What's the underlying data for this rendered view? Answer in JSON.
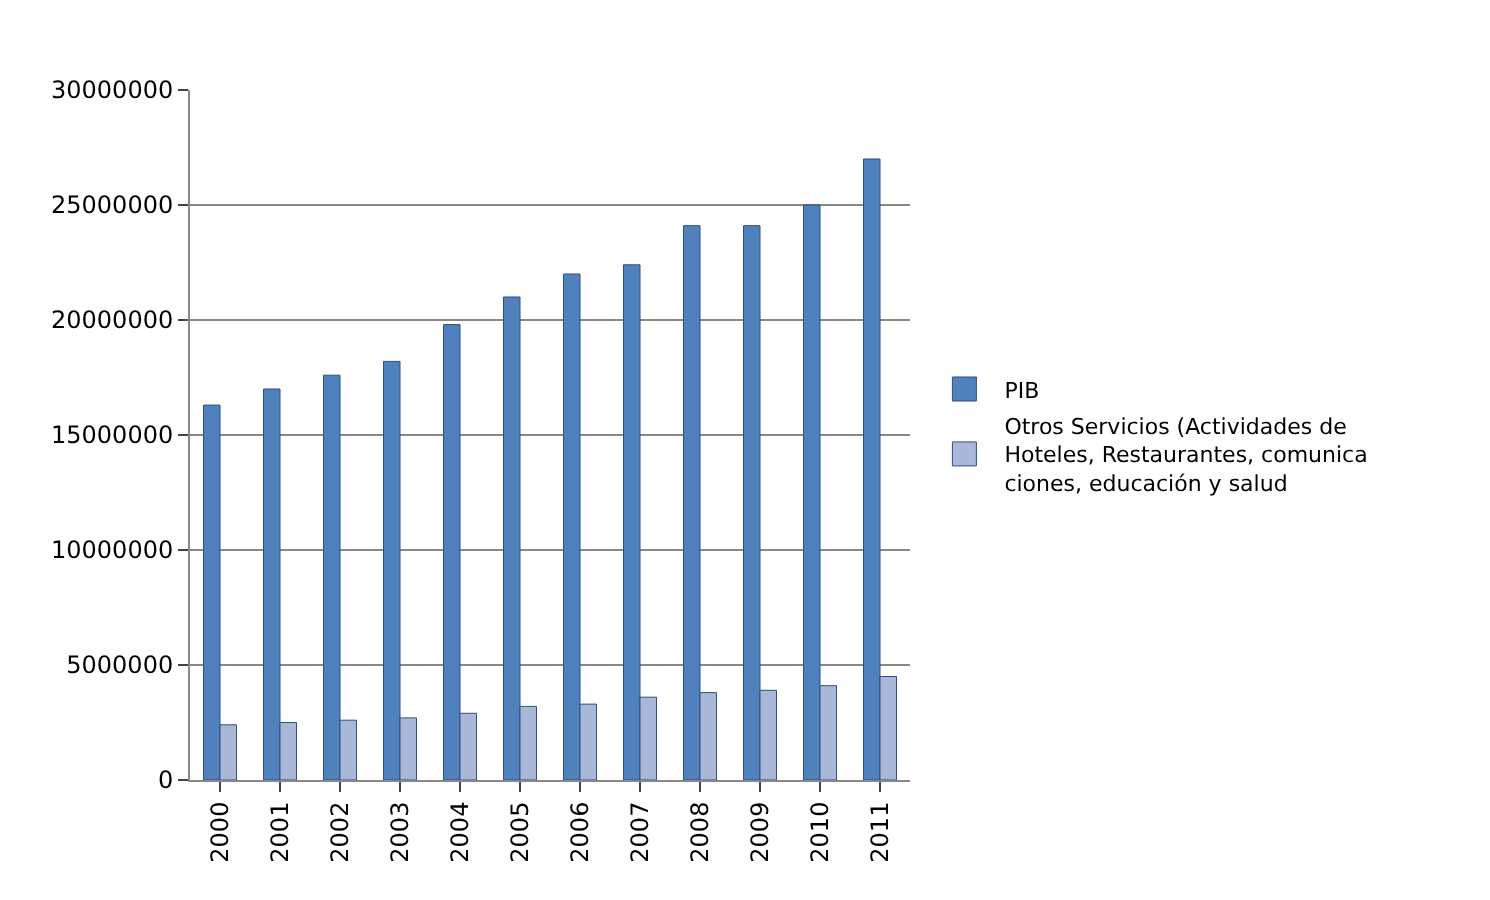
{
  "chart_data": {
    "type": "bar",
    "categories": [
      "2000",
      "2001",
      "2002",
      "2003",
      "2004",
      "2005",
      "2006",
      "2007",
      "2008",
      "2009",
      "2010",
      "2011"
    ],
    "series": [
      {
        "name": "PIB",
        "color": "#4f81bd",
        "values": [
          16300000,
          17000000,
          17600000,
          18200000,
          19800000,
          21000000,
          22000000,
          22400000,
          24100000,
          24100000,
          25000000,
          27000000
        ]
      },
      {
        "name": "Otros Servicios (Actividades de Hoteles, Restaurantes, comunica ciones, educación y salud",
        "color": "#a9b8d9",
        "values": [
          2400000,
          2500000,
          2600000,
          2700000,
          2900000,
          3200000,
          3300000,
          3600000,
          3800000,
          3900000,
          4100000,
          4500000
        ]
      }
    ],
    "ylim": [
      0,
      30000000
    ],
    "yticks": [
      0,
      5000000,
      10000000,
      15000000,
      20000000,
      25000000,
      30000000
    ],
    "grid": "y",
    "legend": "right"
  }
}
